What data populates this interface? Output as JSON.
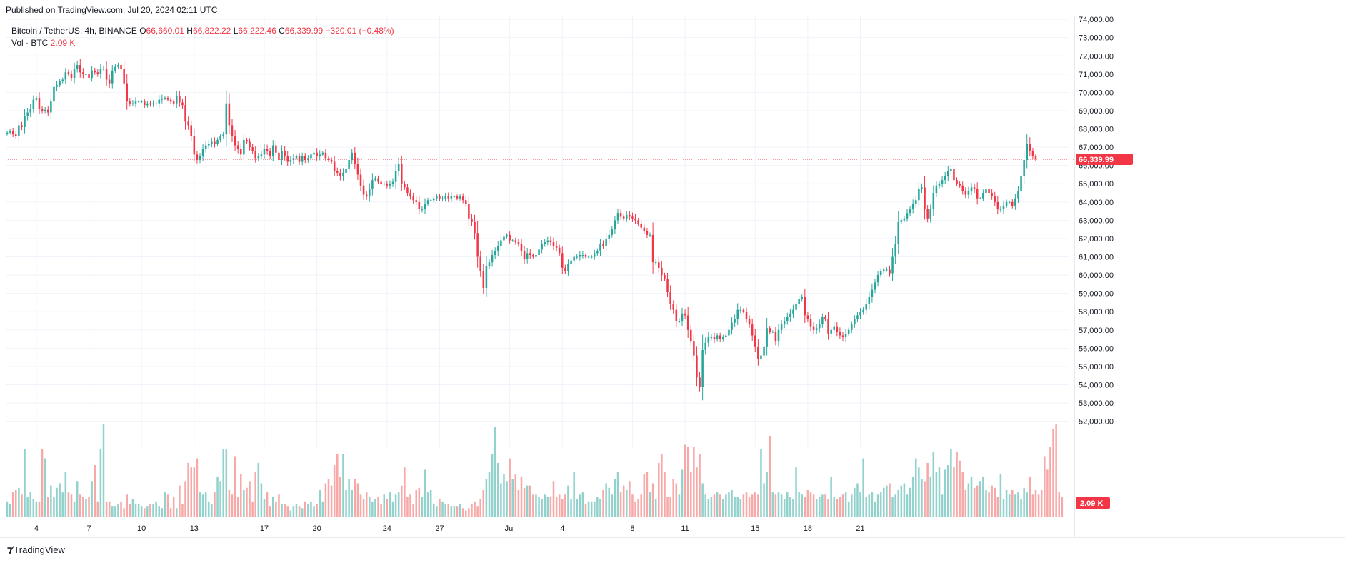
{
  "header": {
    "published": "Published on TradingView.com, Jul 20, 2024 02:11 UTC"
  },
  "legend": {
    "symbol": "Bitcoin / TetherUS, 4h, BINANCE",
    "o_label": "O",
    "o_value": "66,660.01",
    "h_label": "H",
    "h_value": "66,822.22",
    "l_label": "L",
    "l_value": "66,222.46",
    "c_label": "C",
    "c_value": "66,339.99",
    "change": "−320.01 (−0.48%)",
    "vol_label": "Vol · BTC",
    "vol_value": "2.09 K"
  },
  "footer": {
    "brand_icon": "tradingview-logo-icon",
    "brand": "TradingView"
  },
  "colors": {
    "up": "#26a69a",
    "down": "#f23645",
    "up_vol": "#92d2cc",
    "down_vol": "#f7a9a7",
    "grid": "#f0f3fa"
  },
  "chart_data": {
    "type": "candlestick",
    "title": "Bitcoin / TetherUS, 4h, BINANCE",
    "price_axis": {
      "ylim": [
        51400,
        74200
      ],
      "ticks": [
        "74,000.00",
        "73,000.00",
        "72,000.00",
        "71,000.00",
        "70,000.00",
        "69,000.00",
        "68,000.00",
        "67,000.00",
        "66,000.00",
        "65,000.00",
        "64,000.00",
        "63,000.00",
        "62,000.00",
        "61,000.00",
        "60,000.00",
        "59,000.00",
        "58,000.00",
        "57,000.00",
        "56,000.00",
        "55,000.00",
        "54,000.00",
        "53,000.00",
        "52,000.00"
      ],
      "current_price_label": "66,339.99",
      "current_price": 66339.99,
      "volume_label": "2.09 K"
    },
    "time_axis": {
      "ticks": [
        "4",
        "7",
        "10",
        "13",
        "17",
        "20",
        "24",
        "27",
        "Jul",
        "4",
        "8",
        "11",
        "15",
        "18",
        "21"
      ],
      "tick_bar_index": [
        10,
        28,
        46,
        64,
        88,
        106,
        130,
        148,
        172,
        190,
        214,
        232,
        256,
        274,
        292
      ]
    },
    "closes": [
      67800,
      67900,
      67700,
      67600,
      68200,
      68100,
      68700,
      68900,
      69100,
      69600,
      69700,
      69100,
      69000,
      69050,
      68900,
      69500,
      70300,
      70400,
      70600,
      70700,
      71100,
      71000,
      70800,
      71300,
      71500,
      71100,
      71000,
      71000,
      70800,
      71200,
      71100,
      71000,
      71300,
      71300,
      70700,
      70500,
      71200,
      71400,
      71500,
      71300,
      70500,
      69500,
      69400,
      69400,
      69500,
      69500,
      69500,
      69300,
      69400,
      69350,
      69400,
      69400,
      69600,
      69650,
      69700,
      69600,
      69500,
      69400,
      69800,
      69450,
      69300,
      68400,
      68200,
      67600,
      66600,
      66300,
      66500,
      66900,
      67100,
      67200,
      67300,
      67200,
      67400,
      67600,
      67700,
      69400,
      68200,
      67600,
      67100,
      66900,
      66600,
      67400,
      67300,
      67000,
      66800,
      66400,
      66500,
      66600,
      66900,
      66800,
      66500,
      67100,
      66700,
      66300,
      66800,
      66500,
      66200,
      66300,
      66400,
      66500,
      66200,
      66500,
      66300,
      66400,
      66600,
      66700,
      66500,
      66600,
      66700,
      66400,
      66300,
      66200,
      65700,
      65600,
      65400,
      65600,
      65800,
      66300,
      66700,
      66100,
      65500,
      64900,
      64400,
      64300,
      64700,
      65200,
      65300,
      65100,
      65000,
      65000,
      64900,
      65000,
      65100,
      65700,
      66100,
      65000,
      64800,
      64500,
      64300,
      64100,
      64000,
      63600,
      63600,
      63900,
      64100,
      64100,
      64200,
      64300,
      64200,
      64200,
      64300,
      64200,
      64300,
      64300,
      64200,
      64300,
      64100,
      63900,
      63100,
      62900,
      62300,
      61000,
      60200,
      59300,
      60500,
      60700,
      61100,
      61300,
      61600,
      61900,
      62100,
      62200,
      61900,
      61900,
      61800,
      61700,
      61300,
      60900,
      61200,
      61100,
      61000,
      61100,
      61400,
      61700,
      61800,
      61900,
      61800,
      61600,
      61500,
      61200,
      60400,
      60200,
      60600,
      60800,
      61000,
      61000,
      61100,
      61100,
      61000,
      61000,
      61000,
      61200,
      61300,
      61700,
      61600,
      62000,
      62200,
      62500,
      63000,
      63400,
      63200,
      63100,
      63300,
      63200,
      63100,
      63000,
      62800,
      62600,
      62400,
      62200,
      62200,
      60700,
      60700,
      60400,
      60000,
      59800,
      59100,
      58400,
      58100,
      57500,
      57500,
      57900,
      57800,
      57000,
      56400,
      55600,
      54400,
      53900,
      55900,
      56300,
      56600,
      56600,
      56500,
      56700,
      56500,
      56600,
      56700,
      57000,
      57400,
      57600,
      58100,
      58100,
      58000,
      57600,
      57300,
      56700,
      56100,
      55400,
      55600,
      56100,
      57100,
      56900,
      56900,
      56400,
      57000,
      57300,
      57500,
      57700,
      57900,
      58100,
      58400,
      58700,
      58800,
      57800,
      57600,
      57200,
      57000,
      57100,
      57300,
      57700,
      57600,
      56800,
      57000,
      57200,
      56900,
      56700,
      56600,
      56800,
      57000,
      57300,
      57600,
      57800,
      58000,
      58100,
      58400,
      58800,
      59200,
      59600,
      60000,
      60200,
      60300,
      60300,
      60100,
      61000,
      61700,
      62900,
      63000,
      63100,
      63400,
      63600,
      63900,
      64100,
      64700,
      64800,
      63600,
      63100,
      63600,
      64500,
      64900,
      65000,
      65200,
      65400,
      65700,
      65800,
      65200,
      65000,
      64900,
      64600,
      64400,
      64600,
      64800,
      64700,
      64200,
      64200,
      64500,
      64700,
      64500,
      64300,
      64000,
      63600,
      63600,
      63800,
      64000,
      64000,
      63800,
      64200,
      64600,
      65400,
      66300,
      67200,
      66800,
      66500,
      66340
    ],
    "volumes": [
      0.35,
      0.3,
      0.55,
      0.6,
      0.65,
      0.5,
      1.5,
      0.45,
      0.55,
      0.4,
      0.35,
      0.35,
      1.5,
      1.3,
      0.45,
      0.7,
      0.45,
      0.65,
      0.75,
      0.55,
      1.0,
      0.55,
      0.5,
      0.35,
      0.8,
      0.5,
      0.45,
      0.4,
      0.45,
      0.8,
      1.15,
      0.35,
      1.5,
      2.05,
      0.35,
      0.35,
      0.25,
      0.25,
      0.3,
      0.35,
      0.2,
      0.5,
      0.3,
      0.4,
      0.3,
      0.3,
      0.25,
      0.2,
      0.25,
      0.3,
      0.3,
      0.35,
      0.25,
      0.2,
      0.55,
      0.5,
      0.2,
      0.45,
      0.2,
      0.7,
      0.3,
      0.8,
      1.2,
      1.1,
      1.1,
      1.3,
      0.55,
      0.5,
      0.55,
      0.35,
      0.3,
      0.55,
      0.9,
      0.8,
      1.5,
      1.5,
      0.6,
      0.5,
      1.35,
      0.45,
      0.95,
      0.6,
      0.65,
      0.8,
      0.35,
      1.0,
      1.2,
      0.75,
      0.4,
      0.55,
      0.25,
      0.45,
      0.35,
      0.5,
      0.3,
      0.3,
      0.25,
      0.15,
      0.25,
      0.3,
      0.25,
      0.2,
      0.35,
      0.3,
      0.35,
      0.25,
      0.3,
      0.6,
      0.35,
      0.75,
      0.85,
      0.7,
      1.15,
      1.4,
      0.9,
      1.4,
      0.6,
      0.85,
      0.6,
      0.85,
      0.75,
      0.5,
      0.4,
      0.55,
      0.45,
      0.35,
      0.4,
      0.45,
      0.3,
      0.5,
      0.4,
      0.55,
      0.35,
      0.5,
      0.55,
      0.7,
      1.1,
      0.45,
      0.5,
      0.3,
      0.6,
      0.65,
      0.45,
      1.05,
      0.55,
      0.6,
      0.3,
      0.25,
      0.4,
      0.35,
      0.3,
      0.3,
      0.25,
      0.25,
      0.25,
      0.3,
      0.2,
      0.15,
      0.2,
      0.3,
      0.35,
      0.25,
      0.4,
      0.6,
      0.85,
      1.0,
      1.4,
      2.0,
      1.2,
      0.75,
      0.95,
      0.8,
      1.3,
      0.85,
      0.95,
      0.6,
      0.9,
      0.65,
      0.7,
      0.7,
      0.5,
      0.5,
      0.45,
      0.4,
      0.5,
      0.45,
      0.45,
      0.8,
      0.45,
      0.5,
      0.4,
      0.5,
      0.7,
      0.4,
      1.0,
      0.4,
      0.5,
      0.55,
      0.3,
      0.35,
      0.35,
      0.35,
      0.45,
      0.4,
      0.6,
      0.75,
      0.65,
      0.5,
      0.85,
      1.0,
      0.55,
      0.7,
      0.6,
      0.8,
      0.5,
      0.35,
      0.4,
      0.5,
      0.95,
      1.0,
      0.55,
      0.75,
      0.4,
      1.2,
      1.4,
      1.0,
      0.45,
      0.45,
      0.85,
      0.75,
      0.5,
      1.05,
      1.6,
      1.55,
      1.0,
      1.55,
      1.1,
      1.4,
      0.75,
      0.5,
      0.4,
      0.45,
      0.5,
      0.55,
      0.5,
      0.4,
      0.5,
      0.55,
      0.6,
      0.45,
      0.45,
      0.4,
      0.5,
      0.55,
      0.45,
      0.5,
      0.55,
      0.5,
      1.5,
      0.75,
      1.0,
      1.8,
      0.55,
      0.5,
      0.55,
      0.5,
      0.4,
      0.55,
      0.45,
      0.4,
      1.1,
      0.55,
      0.5,
      0.45,
      0.6,
      0.55,
      0.5,
      0.4,
      0.45,
      0.5,
      0.5,
      0.4,
      0.9,
      0.45,
      0.4,
      0.45,
      0.5,
      0.55,
      0.35,
      0.5,
      0.65,
      0.75,
      0.55,
      1.3,
      0.45,
      0.5,
      0.55,
      0.35,
      0.5,
      0.55,
      0.65,
      0.7,
      0.75,
      0.45,
      0.5,
      0.6,
      0.7,
      0.75,
      0.5,
      0.65,
      0.9,
      1.3,
      1.1,
      0.85,
      0.8,
      1.2,
      0.9,
      1.45,
      1.0,
      1.1,
      0.5,
      1.05,
      1.15,
      1.5,
      1.1,
      1.45,
      1.25,
      1.0,
      0.6,
      0.75,
      0.9,
      0.65,
      0.7,
      0.8,
      0.9,
      0.6,
      0.55,
      0.7,
      0.65,
      0.45,
      0.95,
      0.4,
      0.6,
      0.5,
      0.6,
      0.5,
      0.55,
      0.4,
      0.65,
      0.55,
      0.9,
      0.5,
      0.6,
      0.5,
      0.6,
      1.35,
      1.05,
      1.55,
      1.95,
      2.05,
      0.55,
      0.45
    ]
  }
}
